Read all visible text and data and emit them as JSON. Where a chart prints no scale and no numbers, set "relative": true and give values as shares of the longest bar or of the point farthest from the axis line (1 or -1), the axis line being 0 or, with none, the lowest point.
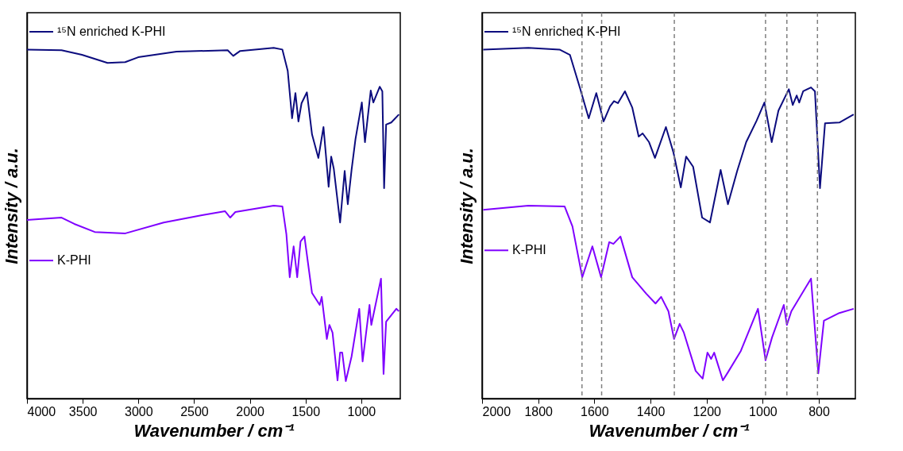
{
  "chart_data": [
    {
      "type": "line",
      "relative": true,
      "xlabel": "Wavenumber / cm⁻¹",
      "ylabel": "Intensity / a.u.",
      "xlim": [
        4000,
        650
      ],
      "xticks": [
        4000,
        3500,
        3000,
        2500,
        2000,
        1500,
        1000
      ],
      "legend": "top left",
      "grid": false,
      "series": [
        {
          "name": "¹⁵N enriched K-PHI",
          "color": "#0c0c7e",
          "x": [
            4000,
            3690,
            3507,
            3277,
            3119,
            3002,
            2658,
            2199,
            2149,
            2087,
            1786,
            1708,
            1660,
            1621,
            1591,
            1564,
            1536,
            1488,
            1442,
            1385,
            1339,
            1293,
            1270,
            1247,
            1190,
            1149,
            1121,
            1087,
            1052,
            995,
            967,
            915,
            892,
            834,
            811,
            795,
            777,
            731,
            662
          ],
          "values": [
            0.995,
            0.993,
            0.98,
            0.957,
            0.959,
            0.973,
            0.989,
            0.993,
            0.977,
            0.991,
            1.0,
            0.995,
            0.934,
            0.799,
            0.871,
            0.79,
            0.842,
            0.873,
            0.753,
            0.686,
            0.774,
            0.604,
            0.69,
            0.656,
            0.502,
            0.649,
            0.554,
            0.652,
            0.74,
            0.844,
            0.731,
            0.878,
            0.844,
            0.889,
            0.876,
            0.6,
            0.781,
            0.787,
            0.81
          ]
        },
        {
          "name": "K-PHI",
          "color": "#7f00ff",
          "x": [
            4000,
            3690,
            3576,
            3392,
            3117,
            2773,
            2429,
            2222,
            2176,
            2130,
            1786,
            1708,
            1672,
            1642,
            1607,
            1575,
            1545,
            1510,
            1442,
            1373,
            1355,
            1309,
            1286,
            1258,
            1213,
            1190,
            1171,
            1139,
            1087,
            1018,
            988,
            926,
            910,
            823,
            800,
            777,
            685,
            662
          ],
          "values": [
            0.509,
            0.516,
            0.498,
            0.475,
            0.471,
            0.502,
            0.523,
            0.534,
            0.516,
            0.532,
            0.55,
            0.548,
            0.468,
            0.346,
            0.434,
            0.346,
            0.448,
            0.462,
            0.301,
            0.267,
            0.29,
            0.17,
            0.21,
            0.188,
            0.052,
            0.131,
            0.131,
            0.05,
            0.12,
            0.256,
            0.106,
            0.267,
            0.21,
            0.342,
            0.07,
            0.219,
            0.256,
            0.249
          ]
        }
      ]
    },
    {
      "type": "line",
      "relative": true,
      "xlabel": "Wavenumber / cm⁻¹",
      "ylabel": "Intensity / a.u.",
      "xlim": [
        2000,
        670
      ],
      "xticks": [
        2000,
        1800,
        1600,
        1400,
        1200,
        1000,
        800
      ],
      "legend": "top left",
      "grid": false,
      "series": [
        {
          "name": "¹⁵N enriched K-PHI",
          "color": "#0c0c7e",
          "x": [
            1996,
            1835,
            1724,
            1687,
            1650,
            1620,
            1593,
            1567,
            1544,
            1530,
            1516,
            1491,
            1465,
            1442,
            1428,
            1405,
            1384,
            1345,
            1318,
            1292,
            1273,
            1248,
            1216,
            1188,
            1150,
            1124,
            1091,
            1059,
            1022,
            994,
            968,
            944,
            907,
            893,
            879,
            870,
            856,
            828,
            814,
            796,
            778,
            727,
            676
          ],
          "values": [
            0.995,
            1.0,
            0.995,
            0.98,
            0.882,
            0.799,
            0.871,
            0.79,
            0.833,
            0.848,
            0.842,
            0.876,
            0.83,
            0.747,
            0.756,
            0.731,
            0.686,
            0.774,
            0.701,
            0.602,
            0.69,
            0.661,
            0.516,
            0.502,
            0.652,
            0.554,
            0.649,
            0.731,
            0.792,
            0.844,
            0.731,
            0.821,
            0.882,
            0.837,
            0.864,
            0.844,
            0.876,
            0.887,
            0.876,
            0.6,
            0.785,
            0.787,
            0.81
          ]
        },
        {
          "name": "K-PHI",
          "color": "#7f00ff",
          "x": [
            1996,
            1835,
            1706,
            1678,
            1643,
            1607,
            1576,
            1547,
            1532,
            1507,
            1465,
            1415,
            1382,
            1362,
            1336,
            1316,
            1296,
            1281,
            1239,
            1214,
            1197,
            1184,
            1173,
            1142,
            1124,
            1078,
            1017,
            990,
            967,
            925,
            914,
            898,
            828,
            802,
            782,
            727,
            676
          ],
          "values": [
            0.538,
            0.55,
            0.548,
            0.491,
            0.346,
            0.434,
            0.346,
            0.446,
            0.441,
            0.462,
            0.346,
            0.299,
            0.271,
            0.29,
            0.249,
            0.17,
            0.213,
            0.188,
            0.079,
            0.057,
            0.131,
            0.113,
            0.131,
            0.052,
            0.075,
            0.136,
            0.256,
            0.109,
            0.174,
            0.267,
            0.21,
            0.249,
            0.342,
            0.072,
            0.222,
            0.244,
            0.256
          ]
        }
      ],
      "ref_lines": [
        {
          "axis": "x",
          "value": 1644,
          "color": "#808080",
          "line_style": "dashed"
        },
        {
          "axis": "x",
          "value": 1574,
          "color": "#808080",
          "line_style": "dashed"
        },
        {
          "axis": "x",
          "value": 1315,
          "color": "#808080",
          "line_style": "dashed"
        },
        {
          "axis": "x",
          "value": 990,
          "color": "#808080",
          "line_style": "dashed"
        },
        {
          "axis": "x",
          "value": 914,
          "color": "#808080",
          "line_style": "dashed"
        },
        {
          "axis": "x",
          "value": 805,
          "color": "#808080",
          "line_style": "dashed"
        }
      ]
    }
  ]
}
